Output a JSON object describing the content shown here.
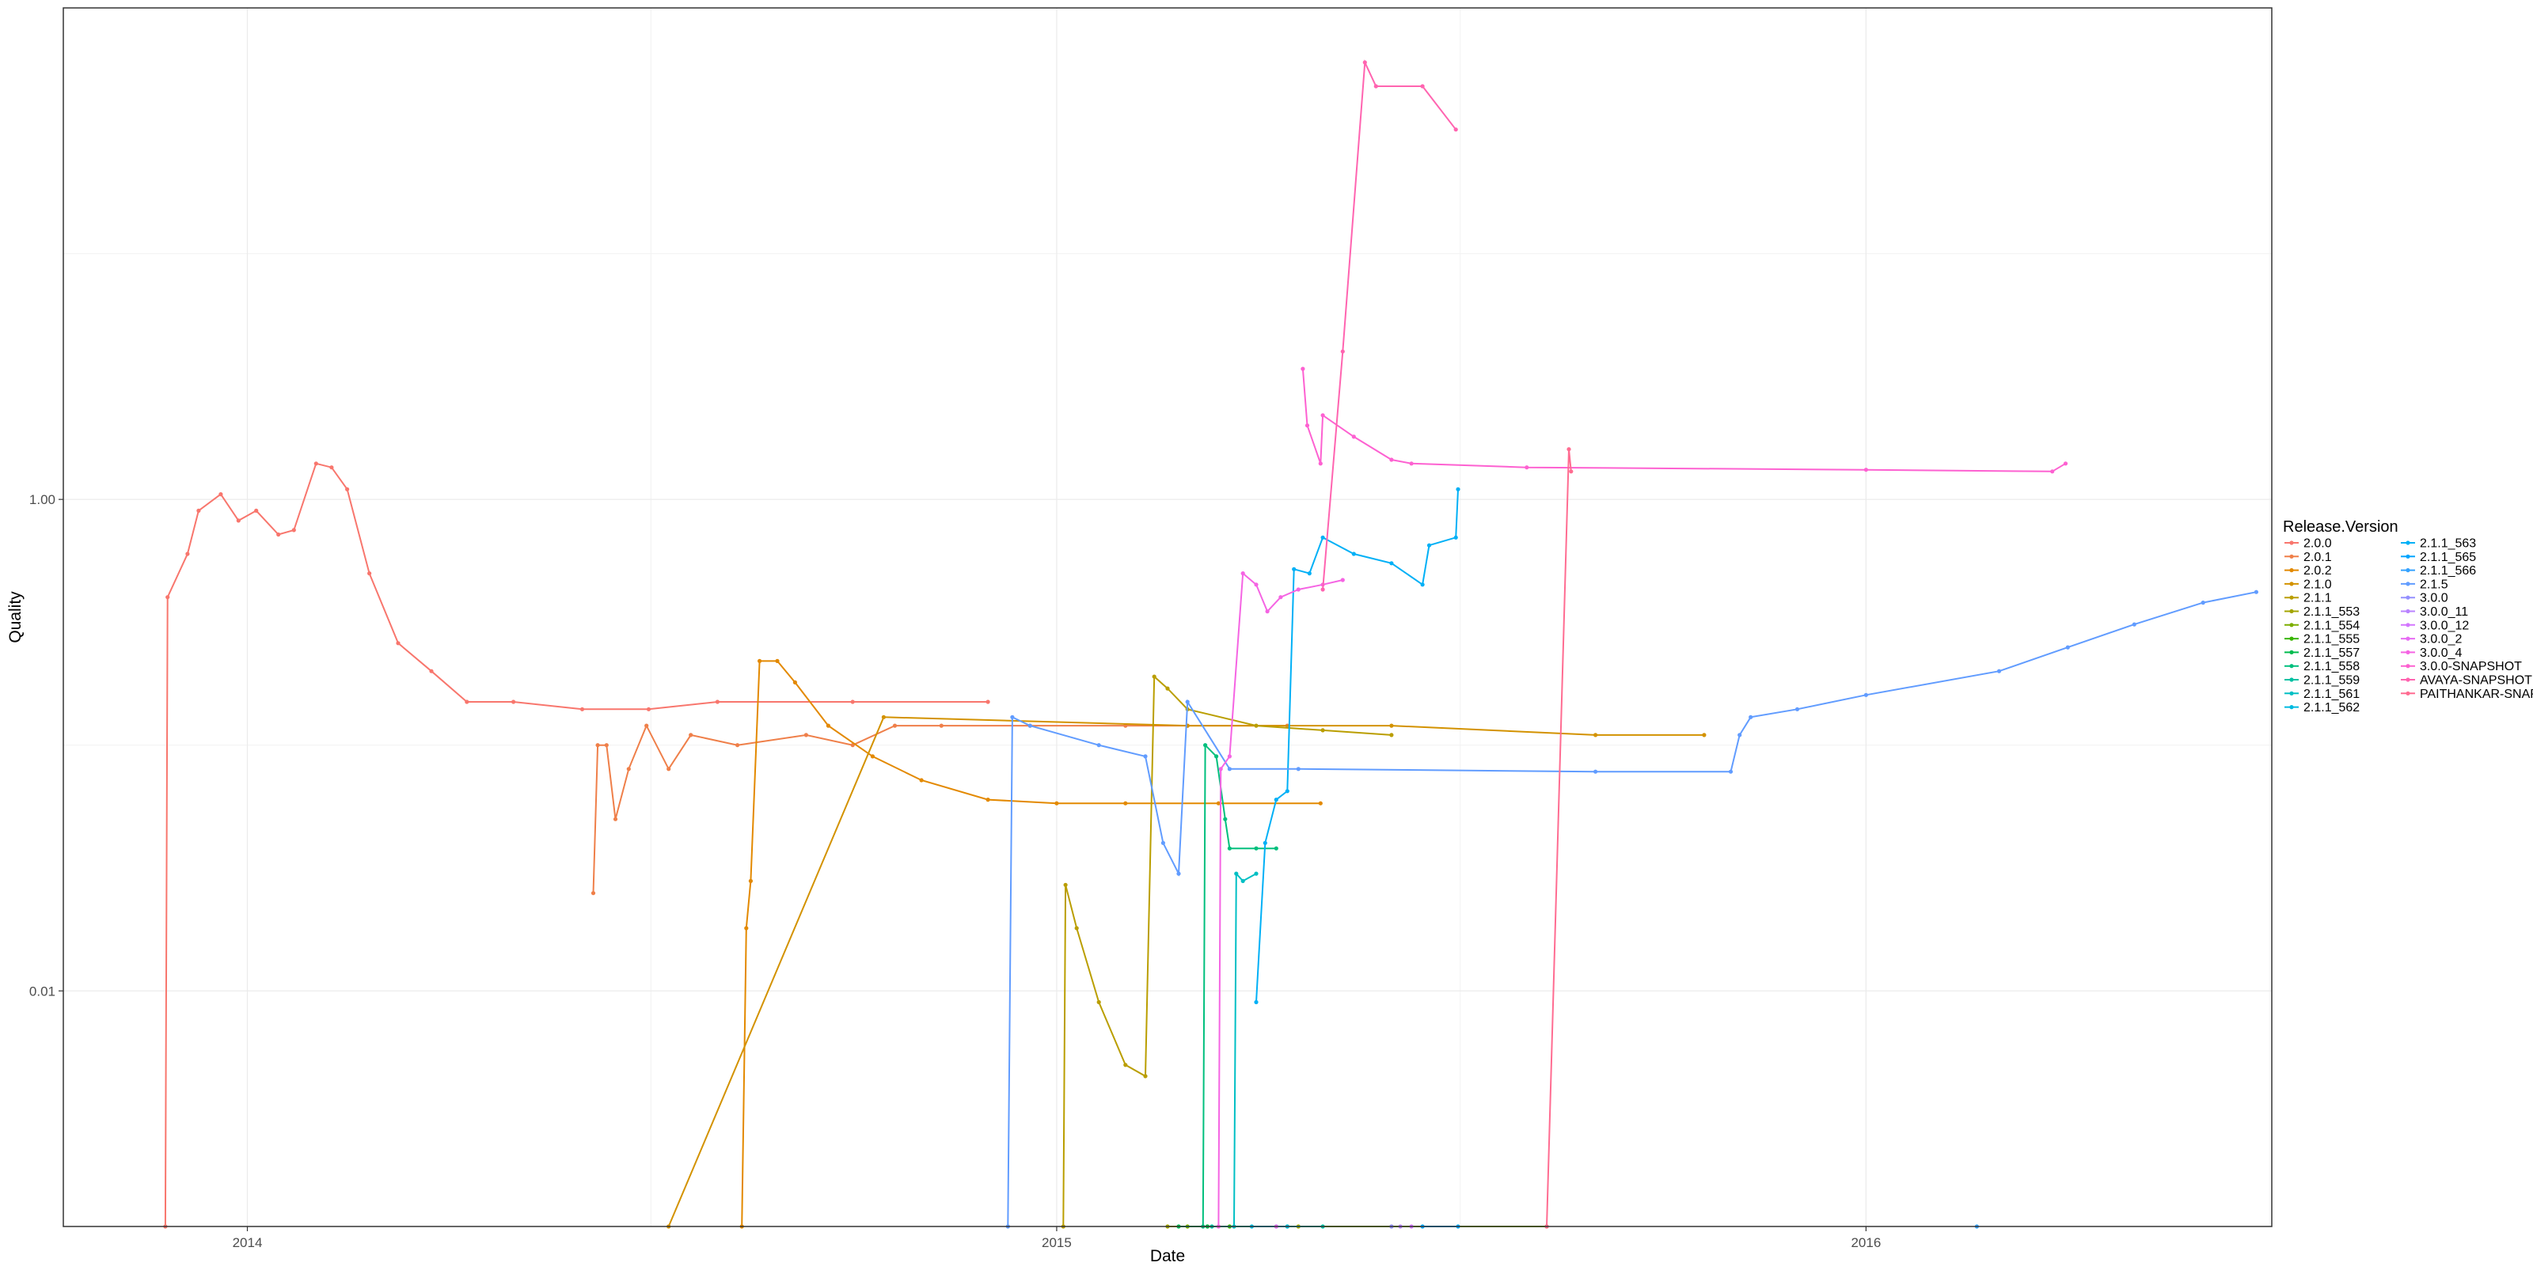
{
  "chart_data": {
    "type": "line",
    "title": "",
    "xlabel": "Date",
    "ylabel": "Quality",
    "x_ticks": [
      "2014",
      "2015",
      "2016"
    ],
    "y_ticks": [
      "0.01",
      "1.00"
    ],
    "y_scale": "log10",
    "xlim": [
      "2013-10-10",
      "2016-07-02"
    ],
    "ylim": [
      0.0011,
      100
    ],
    "grid": true,
    "legend_title": "Release.Version",
    "legend_position": "right",
    "series": [
      {
        "name": "2.0.0",
        "color": "#F8766D",
        "points": [
          [
            "2013-11-25",
            0.0011
          ],
          [
            "2013-11-26",
            0.4
          ],
          [
            "2013-12-05",
            0.6
          ],
          [
            "2013-12-10",
            0.9
          ],
          [
            "2013-12-20",
            1.05
          ],
          [
            "2013-12-28",
            0.82
          ],
          [
            "2014-01-05",
            0.9
          ],
          [
            "2014-01-15",
            0.72
          ],
          [
            "2014-01-22",
            0.75
          ],
          [
            "2014-02-01",
            1.4
          ],
          [
            "2014-02-08",
            1.35
          ],
          [
            "2014-02-15",
            1.1
          ],
          [
            "2014-02-25",
            0.5
          ],
          [
            "2014-03-10",
            0.26
          ],
          [
            "2014-03-25",
            0.2
          ],
          [
            "2014-04-10",
            0.15
          ],
          [
            "2014-05-01",
            0.15
          ],
          [
            "2014-06-01",
            0.14
          ],
          [
            "2014-07-01",
            0.14
          ],
          [
            "2014-08-01",
            0.15
          ],
          [
            "2014-10-01",
            0.15
          ],
          [
            "2014-12-01",
            0.15
          ]
        ]
      },
      {
        "name": "2.0.1",
        "color": "#EF7F49",
        "points": [
          [
            "2014-06-06",
            0.025
          ],
          [
            "2014-06-08",
            0.1
          ],
          [
            "2014-06-12",
            0.1
          ],
          [
            "2014-06-16",
            0.05
          ],
          [
            "2014-06-22",
            0.08
          ],
          [
            "2014-06-30",
            0.12
          ],
          [
            "2014-07-10",
            0.08
          ],
          [
            "2014-07-20",
            0.11
          ],
          [
            "2014-08-10",
            0.1
          ],
          [
            "2014-09-10",
            0.11
          ],
          [
            "2014-10-01",
            0.1
          ],
          [
            "2014-10-20",
            0.12
          ],
          [
            "2014-11-10",
            0.12
          ],
          [
            "2014-12-20",
            0.12
          ],
          [
            "2015-02-01",
            0.12
          ],
          [
            "2015-03-01",
            0.12
          ],
          [
            "2015-04-15",
            0.12
          ]
        ]
      },
      {
        "name": "2.0.2",
        "color": "#E38900",
        "points": [
          [
            "2014-08-12",
            0.0011
          ],
          [
            "2014-08-14",
            0.018
          ],
          [
            "2014-08-16",
            0.028
          ],
          [
            "2014-08-20",
            0.22
          ],
          [
            "2014-08-28",
            0.22
          ],
          [
            "2014-09-05",
            0.18
          ],
          [
            "2014-09-20",
            0.12
          ],
          [
            "2014-10-10",
            0.09
          ],
          [
            "2014-11-01",
            0.072
          ],
          [
            "2014-12-01",
            0.06
          ],
          [
            "2015-01-01",
            0.058
          ],
          [
            "2015-02-01",
            0.058
          ],
          [
            "2015-03-15",
            0.058
          ],
          [
            "2015-04-30",
            0.058
          ]
        ]
      },
      {
        "name": "2.1.0",
        "color": "#D39200",
        "points": [
          [
            "2014-07-10",
            0.0011
          ],
          [
            "2014-10-15",
            0.13
          ],
          [
            "2015-03-01",
            0.12
          ],
          [
            "2015-06-01",
            0.12
          ],
          [
            "2015-09-01",
            0.11
          ],
          [
            "2015-10-20",
            0.11
          ]
        ]
      },
      {
        "name": "2.1.1",
        "color": "#BA9E00",
        "points": [
          [
            "2015-01-04",
            0.0011
          ],
          [
            "2015-01-05",
            0.027
          ],
          [
            "2015-01-10",
            0.018
          ],
          [
            "2015-01-20",
            0.009
          ],
          [
            "2015-02-01",
            0.005
          ],
          [
            "2015-02-10",
            0.0045
          ],
          [
            "2015-02-14",
            0.19
          ],
          [
            "2015-02-20",
            0.17
          ],
          [
            "2015-03-01",
            0.14
          ],
          [
            "2015-04-01",
            0.12
          ],
          [
            "2015-05-01",
            0.115
          ],
          [
            "2015-06-01",
            0.11
          ]
        ]
      },
      {
        "name": "2.1.1_553",
        "color": "#A3A500",
        "points": [
          [
            "2015-02-20",
            0.0011
          ],
          [
            "2015-03-10",
            0.0011
          ],
          [
            "2015-04-20",
            0.0011
          ]
        ]
      },
      {
        "name": "2.1.1_554",
        "color": "#7CAE00",
        "points": [
          [
            "2015-03-01",
            0.0011
          ],
          [
            "2015-06-01",
            0.0011
          ],
          [
            "2015-08-10",
            0.0011
          ]
        ]
      },
      {
        "name": "2.1.1_555",
        "color": "#39B600",
        "points": [
          [
            "2015-03-20",
            0.0011
          ],
          [
            "2015-04-15",
            0.0011
          ]
        ]
      },
      {
        "name": "2.1.1_557",
        "color": "#00BB4E",
        "points": [
          [
            "2015-02-25",
            0.0011
          ],
          [
            "2015-03-10",
            0.0011
          ]
        ]
      },
      {
        "name": "2.1.1_558",
        "color": "#00BF7D",
        "points": [
          [
            "2015-03-08",
            0.0011
          ],
          [
            "2015-03-09",
            0.1
          ],
          [
            "2015-03-14",
            0.09
          ],
          [
            "2015-03-18",
            0.05
          ],
          [
            "2015-03-20",
            0.038
          ],
          [
            "2015-04-01",
            0.038
          ],
          [
            "2015-04-10",
            0.038
          ]
        ]
      },
      {
        "name": "2.1.1_559",
        "color": "#00C1A3",
        "points": [
          [
            "2015-03-12",
            0.0011
          ],
          [
            "2015-04-10",
            0.0011
          ],
          [
            "2015-05-01",
            0.0011
          ]
        ]
      },
      {
        "name": "2.1.1_561",
        "color": "#00BFC4",
        "points": [
          [
            "2015-03-22",
            0.0011
          ],
          [
            "2015-03-23",
            0.03
          ],
          [
            "2015-03-26",
            0.028
          ],
          [
            "2015-04-01",
            0.03
          ]
        ]
      },
      {
        "name": "2.1.1_562",
        "color": "#00BAE0",
        "points": [
          [
            "2015-03-30",
            0.0011
          ],
          [
            "2015-04-15",
            0.0011
          ]
        ]
      },
      {
        "name": "2.1.1_563",
        "color": "#00B0F6",
        "points": [
          [
            "2015-04-01",
            0.009
          ],
          [
            "2015-04-05",
            0.04
          ],
          [
            "2015-04-10",
            0.06
          ],
          [
            "2015-04-15",
            0.065
          ],
          [
            "2015-04-18",
            0.52
          ],
          [
            "2015-04-25",
            0.5
          ],
          [
            "2015-05-01",
            0.7
          ],
          [
            "2015-05-15",
            0.6
          ],
          [
            "2015-06-01",
            0.55
          ],
          [
            "2015-06-15",
            0.45
          ],
          [
            "2015-06-18",
            0.65
          ],
          [
            "2015-06-30",
            0.7
          ],
          [
            "2015-07-01",
            1.1
          ]
        ]
      },
      {
        "name": "2.1.1_565",
        "color": "#00A5FF",
        "points": [
          [
            "2015-06-15",
            0.0011
          ],
          [
            "2015-07-01",
            0.0011
          ]
        ]
      },
      {
        "name": "2.1.1_566",
        "color": "#35A2FF",
        "points": [
          [
            "2016-02-20",
            0.0011
          ]
        ]
      },
      {
        "name": "2.1.5",
        "color": "#619CFF",
        "points": [
          [
            "2014-12-10",
            0.0011
          ],
          [
            "2014-12-12",
            0.13
          ],
          [
            "2014-12-20",
            0.12
          ],
          [
            "2015-01-20",
            0.1
          ],
          [
            "2015-02-10",
            0.09
          ],
          [
            "2015-02-18",
            0.04
          ],
          [
            "2015-02-25",
            0.03
          ],
          [
            "2015-03-01",
            0.15
          ],
          [
            "2015-03-20",
            0.08
          ],
          [
            "2015-04-20",
            0.08
          ],
          [
            "2015-09-01",
            0.078
          ],
          [
            "2015-11-01",
            0.078
          ],
          [
            "2015-11-05",
            0.11
          ],
          [
            "2015-11-10",
            0.13
          ],
          [
            "2015-12-01",
            0.14
          ],
          [
            "2016-01-01",
            0.16
          ],
          [
            "2016-03-01",
            0.2
          ],
          [
            "2016-04-01",
            0.25
          ],
          [
            "2016-05-01",
            0.31
          ],
          [
            "2016-06-01",
            0.38
          ],
          [
            "2016-06-25",
            0.42
          ]
        ]
      },
      {
        "name": "3.0.0",
        "color": "#9590FF",
        "points": [
          [
            "2015-06-01",
            0.0011
          ]
        ]
      },
      {
        "name": "3.0.0_11",
        "color": "#B983FF",
        "points": [
          [
            "2015-06-05",
            0.0011
          ]
        ]
      },
      {
        "name": "3.0.0_12",
        "color": "#D376FF",
        "points": [
          [
            "2015-06-10",
            0.0011
          ]
        ]
      },
      {
        "name": "3.0.0_2",
        "color": "#E76BF3",
        "points": [
          [
            "2015-04-10",
            0.0011
          ]
        ]
      },
      {
        "name": "3.0.0_4",
        "color": "#F564E3",
        "points": [
          [
            "2015-03-15",
            0.0011
          ],
          [
            "2015-03-16",
            0.08
          ],
          [
            "2015-03-20",
            0.09
          ],
          [
            "2015-03-26",
            0.5
          ],
          [
            "2015-04-01",
            0.45
          ],
          [
            "2015-04-06",
            0.35
          ],
          [
            "2015-04-12",
            0.4
          ],
          [
            "2015-04-20",
            0.43
          ],
          [
            "2015-05-01",
            0.45
          ],
          [
            "2015-05-10",
            0.47
          ]
        ]
      },
      {
        "name": "3.0.0-SNAPSHOT",
        "color": "#FD61D1",
        "points": [
          [
            "2015-04-22",
            3.4
          ],
          [
            "2015-04-24",
            2.0
          ],
          [
            "2015-04-30",
            1.4
          ],
          [
            "2015-05-01",
            2.2
          ],
          [
            "2015-05-15",
            1.8
          ],
          [
            "2015-06-01",
            1.45
          ],
          [
            "2015-06-10",
            1.4
          ],
          [
            "2015-08-01",
            1.35
          ],
          [
            "2016-01-01",
            1.32
          ],
          [
            "2016-03-25",
            1.3
          ],
          [
            "2016-03-31",
            1.4
          ]
        ]
      },
      {
        "name": "AVAYA-SNAPSHOT",
        "color": "#FF64B0",
        "points": [
          [
            "2015-05-01",
            0.43
          ],
          [
            "2015-05-10",
            4.0
          ],
          [
            "2015-05-20",
            60.0
          ],
          [
            "2015-05-25",
            48.0
          ],
          [
            "2015-06-15",
            48.0
          ],
          [
            "2015-06-30",
            32.0
          ]
        ]
      },
      {
        "name": "PAITHANKAR-SNAPSHOT",
        "color": "#FF6C91",
        "points": [
          [
            "2015-08-10",
            0.0011
          ],
          [
            "2015-08-20",
            1.6
          ],
          [
            "2015-08-21",
            1.3
          ]
        ]
      }
    ]
  }
}
